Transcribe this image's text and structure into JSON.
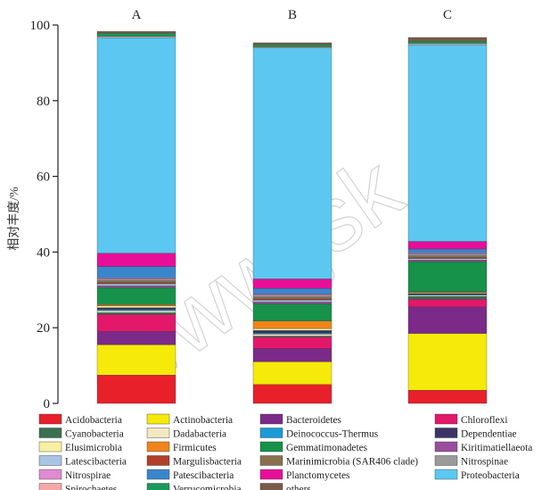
{
  "chart_data": {
    "type": "bar",
    "stacked": true,
    "ylabel": "相对丰度/%",
    "ylim": [
      0,
      100
    ],
    "yticks": [
      0,
      20,
      40,
      60,
      80,
      100
    ],
    "grid": false,
    "legend_position": "bottom",
    "categories": [
      "A",
      "B",
      "C"
    ],
    "series": [
      {
        "name": "Acidobacteria",
        "color": "#e8202a",
        "values": [
          7.5,
          5.0,
          3.5
        ]
      },
      {
        "name": "Actinobacteria",
        "color": "#f5ea0a",
        "values": [
          8.0,
          6.0,
          15.0
        ]
      },
      {
        "name": "Bacteroidetes",
        "color": "#7b2a8a",
        "values": [
          3.5,
          3.5,
          7.0
        ]
      },
      {
        "name": "Chloroflexi",
        "color": "#e3186a",
        "values": [
          4.5,
          3.0,
          2.0
        ]
      },
      {
        "name": "Cyanobacteria",
        "color": "#3a7050",
        "values": [
          0.5,
          0.3,
          0.8
        ]
      },
      {
        "name": "Dadabacteria",
        "color": "#f3e8c0",
        "values": [
          0.5,
          0.5,
          0.3
        ]
      },
      {
        "name": "Deinococcus-Thermus",
        "color": "#1a9ad6",
        "values": [
          0.3,
          0.3,
          0.2
        ]
      },
      {
        "name": "Dependentiae",
        "color": "#3a3566",
        "values": [
          0.5,
          0.7,
          0.3
        ]
      },
      {
        "name": "Elusimicrobia",
        "color": "#f7f0a0",
        "values": [
          0.5,
          0.5,
          0.2
        ]
      },
      {
        "name": "Firmicutes",
        "color": "#f0841c",
        "values": [
          0.3,
          2.0,
          0.2
        ]
      },
      {
        "name": "Gemmatimonadetes",
        "color": "#16924a",
        "values": [
          4.5,
          4.5,
          8.0
        ]
      },
      {
        "name": "Kiritimatiellaeota",
        "color": "#9a4e9e",
        "values": [
          0.5,
          0.5,
          0.4
        ]
      },
      {
        "name": "Latescibacteria",
        "color": "#a8c4e4",
        "values": [
          0.5,
          0.5,
          0.4
        ]
      },
      {
        "name": "Margulisbacteria",
        "color": "#b0402a",
        "values": [
          0.3,
          0.3,
          0.2
        ]
      },
      {
        "name": "Marinimicrobia (SAR406 clade)",
        "color": "#8a7050",
        "values": [
          0.5,
          0.5,
          0.5
        ]
      },
      {
        "name": "Nitrospinae",
        "color": "#9a9a9a",
        "values": [
          0.5,
          0.5,
          0.5
        ]
      },
      {
        "name": "Nitrospirae",
        "color": "#e08ad0",
        "values": [
          0.3,
          0.3,
          0.3
        ]
      },
      {
        "name": "Patescibacteria",
        "color": "#3a86cc",
        "values": [
          3.0,
          1.5,
          1.0
        ]
      },
      {
        "name": "Planctomycetes",
        "color": "#e80f98",
        "values": [
          3.5,
          2.5,
          2.0
        ]
      },
      {
        "name": "Proteobacteria",
        "color": "#5cc8f2",
        "values": [
          57.0,
          61.0,
          52.0
        ]
      },
      {
        "name": "Spirochaetes",
        "color": "#f5a8a8",
        "values": [
          0.3,
          0.3,
          0.3
        ]
      },
      {
        "name": "Verrucomicrobia",
        "color": "#1a9a5a",
        "values": [
          0.8,
          0.6,
          0.6
        ]
      },
      {
        "name": "others",
        "color": "#7a5a4a",
        "values": [
          0.5,
          0.5,
          1.0
        ]
      }
    ]
  },
  "watermark_text": "www.jsk"
}
